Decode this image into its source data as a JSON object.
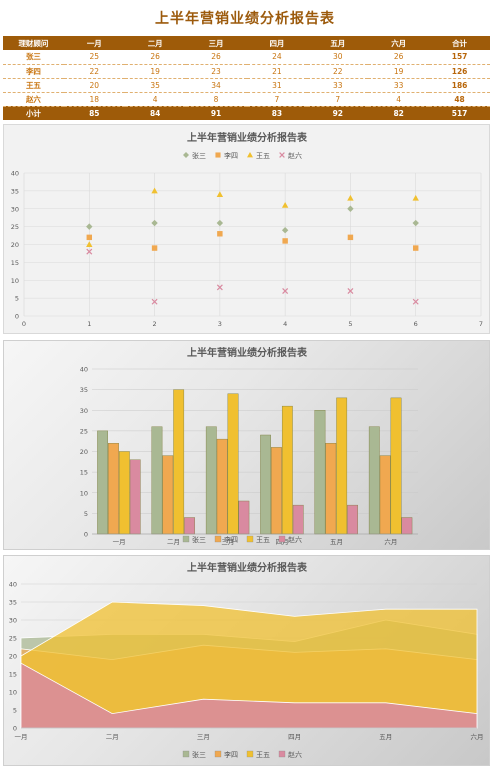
{
  "page": {
    "title": "上半年营销业绩分析报告表"
  },
  "table": {
    "header": [
      "理财顾问",
      "一月",
      "二月",
      "三月",
      "四月",
      "五月",
      "六月",
      "合计"
    ],
    "rows": [
      {
        "name": "张三",
        "values": [
          "25",
          "26",
          "26",
          "24",
          "30",
          "26"
        ],
        "total": "157"
      },
      {
        "name": "李四",
        "values": [
          "22",
          "19",
          "23",
          "21",
          "22",
          "19"
        ],
        "total": "126"
      },
      {
        "name": "王五",
        "values": [
          "20",
          "35",
          "34",
          "31",
          "33",
          "33"
        ],
        "total": "186"
      },
      {
        "name": "赵六",
        "values": [
          "18",
          "4",
          "8",
          "7",
          "7",
          "4"
        ],
        "total": "48"
      }
    ],
    "summary": {
      "name": "小计",
      "values": [
        "85",
        "84",
        "91",
        "83",
        "92",
        "82"
      ],
      "total": "517"
    }
  },
  "colors": {
    "张三": "#a9b893",
    "李四": "#f0a850",
    "王五": "#f0c030",
    "赵六": "#d98aa0"
  },
  "chart_data": [
    {
      "type": "scatter",
      "title": "上半年营销业绩分析报告表",
      "legend": "top",
      "grid": true,
      "xlim": [
        0,
        7
      ],
      "ylim": [
        0,
        40
      ],
      "xticks": [
        "0",
        "1",
        "2",
        "3",
        "4",
        "5",
        "6",
        "7"
      ],
      "yticks": [
        "0",
        "5",
        "10",
        "15",
        "20",
        "25",
        "30",
        "35",
        "40"
      ],
      "x": [
        1,
        2,
        3,
        4,
        5,
        6
      ],
      "series": [
        {
          "name": "张三",
          "marker": "diamond",
          "values": [
            25,
            26,
            26,
            24,
            30,
            26
          ]
        },
        {
          "name": "李四",
          "marker": "square",
          "values": [
            22,
            19,
            23,
            21,
            22,
            19
          ]
        },
        {
          "name": "王五",
          "marker": "triangle",
          "values": [
            20,
            35,
            34,
            31,
            33,
            33
          ]
        },
        {
          "name": "赵六",
          "marker": "x",
          "values": [
            18,
            4,
            8,
            7,
            7,
            4
          ]
        }
      ]
    },
    {
      "type": "bar",
      "title": "上半年营销业绩分析报告表",
      "legend": "bottom",
      "grid": true,
      "ylim": [
        0,
        40
      ],
      "yticks": [
        "0",
        "5",
        "10",
        "15",
        "20",
        "25",
        "30",
        "35",
        "40"
      ],
      "categories": [
        "一月",
        "二月",
        "三月",
        "四月",
        "五月",
        "六月"
      ],
      "series": [
        {
          "name": "张三",
          "values": [
            25,
            26,
            26,
            24,
            30,
            26
          ]
        },
        {
          "name": "李四",
          "values": [
            22,
            19,
            23,
            21,
            22,
            19
          ]
        },
        {
          "name": "王五",
          "values": [
            20,
            35,
            34,
            31,
            33,
            33
          ]
        },
        {
          "name": "赵六",
          "values": [
            18,
            4,
            8,
            7,
            7,
            4
          ]
        }
      ]
    },
    {
      "type": "area",
      "title": "上半年营销业绩分析报告表",
      "legend": "bottom",
      "grid": true,
      "ylim": [
        0,
        40
      ],
      "yticks": [
        "0",
        "5",
        "10",
        "15",
        "20",
        "25",
        "30",
        "35",
        "40"
      ],
      "categories": [
        "一月",
        "二月",
        "三月",
        "四月",
        "五月",
        "六月"
      ],
      "series": [
        {
          "name": "张三",
          "values": [
            25,
            26,
            26,
            24,
            30,
            26
          ]
        },
        {
          "name": "李四",
          "values": [
            22,
            19,
            23,
            21,
            22,
            19
          ]
        },
        {
          "name": "王五",
          "values": [
            20,
            35,
            34,
            31,
            33,
            33
          ]
        },
        {
          "name": "赵六",
          "values": [
            18,
            4,
            8,
            7,
            7,
            4
          ]
        }
      ]
    }
  ]
}
